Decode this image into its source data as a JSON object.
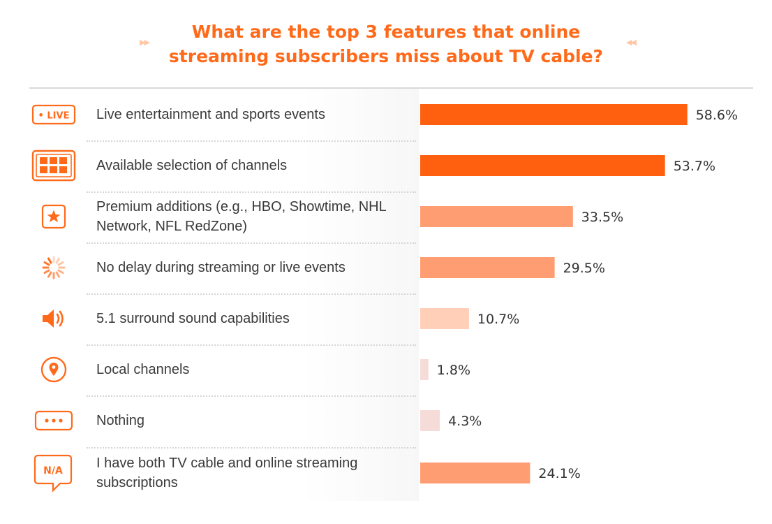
{
  "title_line1": "What are the top 3 features that online",
  "title_line2": "streaming subscribers miss about TV cable?",
  "colors": {
    "title": "#ff6a1a",
    "icon": "#ff6a1a",
    "bar_strong": "#ff6010",
    "bar_medium": "#ff9d72",
    "bar_light": "#ffcfb8",
    "bar_pale": "#f6dcd8"
  },
  "chart_data": {
    "type": "bar",
    "orientation": "horizontal",
    "title": "What are the top 3 features that online streaming subscribers miss about TV cable?",
    "categories": [
      "Live entertainment and sports events",
      "Available selection of channels",
      "Premium additions (e.g., HBO, Showtime, NHL Network, NFL RedZone)",
      "No delay during streaming or live events",
      "5.1 surround sound capabilities",
      "Local channels",
      "Nothing",
      "I have both TV cable and online streaming subscriptions"
    ],
    "values": [
      58.6,
      53.7,
      33.5,
      29.5,
      10.7,
      1.8,
      4.3,
      24.1
    ],
    "value_labels": [
      "58.6%",
      "53.7%",
      "33.5%",
      "29.5%",
      "10.7%",
      "1.8%",
      "4.3%",
      "24.1%"
    ],
    "xlim": [
      0,
      100
    ],
    "grid": false,
    "legend": "none"
  },
  "rows": [
    {
      "icon": "live-badge-icon",
      "icon_text": "• LIVE",
      "label": "Live entertainment and sports events"
    },
    {
      "icon": "channel-grid-icon",
      "icon_text": "",
      "label": "Available selection of channels"
    },
    {
      "icon": "star-icon",
      "icon_text": "",
      "label": "Premium additions (e.g., HBO, Showtime, NHL Network, NFL RedZone)"
    },
    {
      "icon": "loading-spinner-icon",
      "icon_text": "",
      "label": "No delay during streaming or live events"
    },
    {
      "icon": "speaker-icon",
      "icon_text": "",
      "label": "5.1 surround sound capabilities"
    },
    {
      "icon": "location-pin-icon",
      "icon_text": "",
      "label": "Local channels"
    },
    {
      "icon": "ellipsis-icon",
      "icon_text": "•••",
      "label": "Nothing"
    },
    {
      "icon": "na-speech-bubble-icon",
      "icon_text": "N/A",
      "label": "I have both TV cable and online streaming subscriptions"
    }
  ]
}
